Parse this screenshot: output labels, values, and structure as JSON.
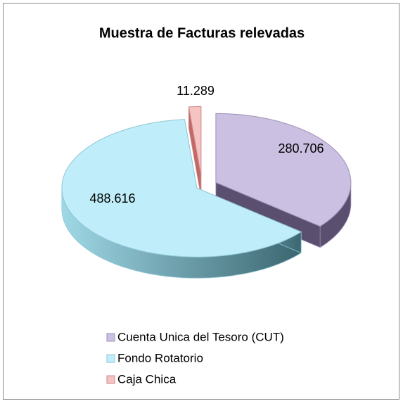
{
  "chart_data": {
    "type": "pie",
    "title": "Muestra de Facturas relevadas",
    "categories": [
      "Cuenta Unica del Tesoro (CUT)",
      "Fondo Rotatorio",
      "Caja Chica"
    ],
    "values": [
      280706,
      488616,
      11289
    ],
    "value_labels": [
      "280.706",
      "488.616",
      "11.289"
    ],
    "colors": [
      "#cbbfe2",
      "#bfeefa",
      "#f6c3c3"
    ],
    "legend": "bottom"
  }
}
